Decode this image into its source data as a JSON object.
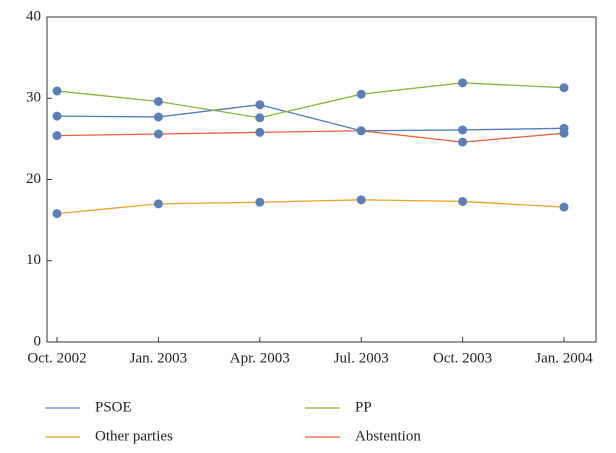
{
  "chart_data": {
    "type": "line",
    "categories": [
      "Oct. 2002",
      "Jan. 2003",
      "Apr. 2003",
      "Jul. 2003",
      "Oct. 2003",
      "Jan. 2004"
    ],
    "series": [
      {
        "name": "PSOE",
        "color": "#4f7fbf",
        "values": [
          27.8,
          27.7,
          29.2,
          26.0,
          26.1,
          26.3
        ]
      },
      {
        "name": "PP",
        "color": "#8db33a",
        "values": [
          30.9,
          29.6,
          27.6,
          30.5,
          31.9,
          31.3
        ]
      },
      {
        "name": "Other parties",
        "color": "#f0a030",
        "values": [
          15.8,
          17.0,
          17.2,
          17.5,
          17.3,
          16.6
        ]
      },
      {
        "name": "Abstention",
        "color": "#e8603c",
        "values": [
          25.4,
          25.6,
          25.8,
          26.0,
          24.6,
          25.7
        ]
      }
    ],
    "marker_color": "#5b7fb5",
    "ylim": [
      0,
      40
    ],
    "yticks": [
      0,
      10,
      20,
      30,
      40
    ]
  }
}
